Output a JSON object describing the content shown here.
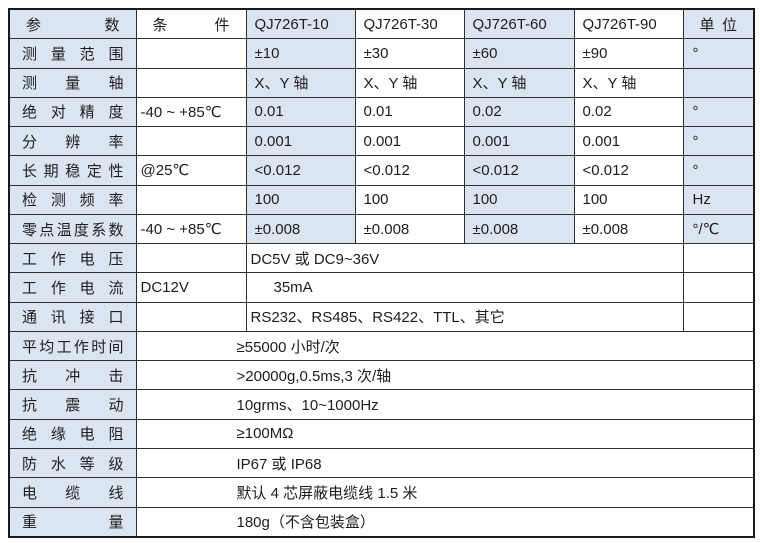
{
  "colors": {
    "row_band": "#dbe5f2",
    "border_inner": "#2f2f2f",
    "border_outer": "#1a1a1a",
    "text": "#1d1d1d"
  },
  "table": {
    "header": {
      "param": "参数",
      "condition": "条件",
      "models": [
        "QJ726T-10",
        "QJ726T-30",
        "QJ726T-60",
        "QJ726T-90"
      ],
      "unit": "单位"
    },
    "rows": [
      {
        "param": "测量范围",
        "condition": "",
        "values": [
          "±10",
          "±30",
          "±60",
          "±90"
        ],
        "unit": "°"
      },
      {
        "param": "测量轴",
        "condition": "",
        "values": [
          "X、Y 轴",
          "X、Y 轴",
          "X、Y 轴",
          "X、Y 轴"
        ],
        "unit": ""
      },
      {
        "param": "绝对精度",
        "condition": "-40 ~ +85℃",
        "values": [
          "0.01",
          "0.01",
          "0.02",
          "0.02"
        ],
        "unit": "°"
      },
      {
        "param": "分辨率",
        "condition": "",
        "values": [
          "0.001",
          "0.001",
          "0.001",
          "0.001"
        ],
        "unit": "°"
      },
      {
        "param": "长期稳定性",
        "condition": "@25℃",
        "values": [
          "<0.012",
          "<0.012",
          "<0.012",
          "<0.012"
        ],
        "unit": "°"
      },
      {
        "param": "检测频率",
        "condition": "",
        "values": [
          "100",
          "100",
          "100",
          "100"
        ],
        "unit": "Hz"
      },
      {
        "param": "零点温度系数",
        "condition": "-40 ~ +85℃",
        "values": [
          "±0.008",
          "±0.008",
          "±0.008",
          "±0.008"
        ],
        "unit": "°/℃"
      },
      {
        "param": "工作电压",
        "condition": "",
        "span": "DC5V 或 DC9~36V",
        "unit": ""
      },
      {
        "param": "工作电流",
        "condition": "DC12V",
        "span": "35mA",
        "unit": ""
      },
      {
        "param": "通讯接口",
        "condition": "",
        "span": "RS232、RS485、RS422、TTL、其它",
        "unit": ""
      },
      {
        "param": "平均工作时间",
        "span": "≥55000 小时/次"
      },
      {
        "param": "抗冲击",
        "span": ">20000g,0.5ms,3 次/轴"
      },
      {
        "param": "抗震动",
        "span": "10grms、10~1000Hz"
      },
      {
        "param": "绝缘电阻",
        "span": "≥100MΩ"
      },
      {
        "param": "防水等级",
        "span": "IP67 或 IP68"
      },
      {
        "param": "电缆线",
        "span": "默认 4 芯屏蔽电缆线 1.5 米"
      },
      {
        "param": "重量",
        "span": "180g（不含包装盒）"
      }
    ]
  }
}
